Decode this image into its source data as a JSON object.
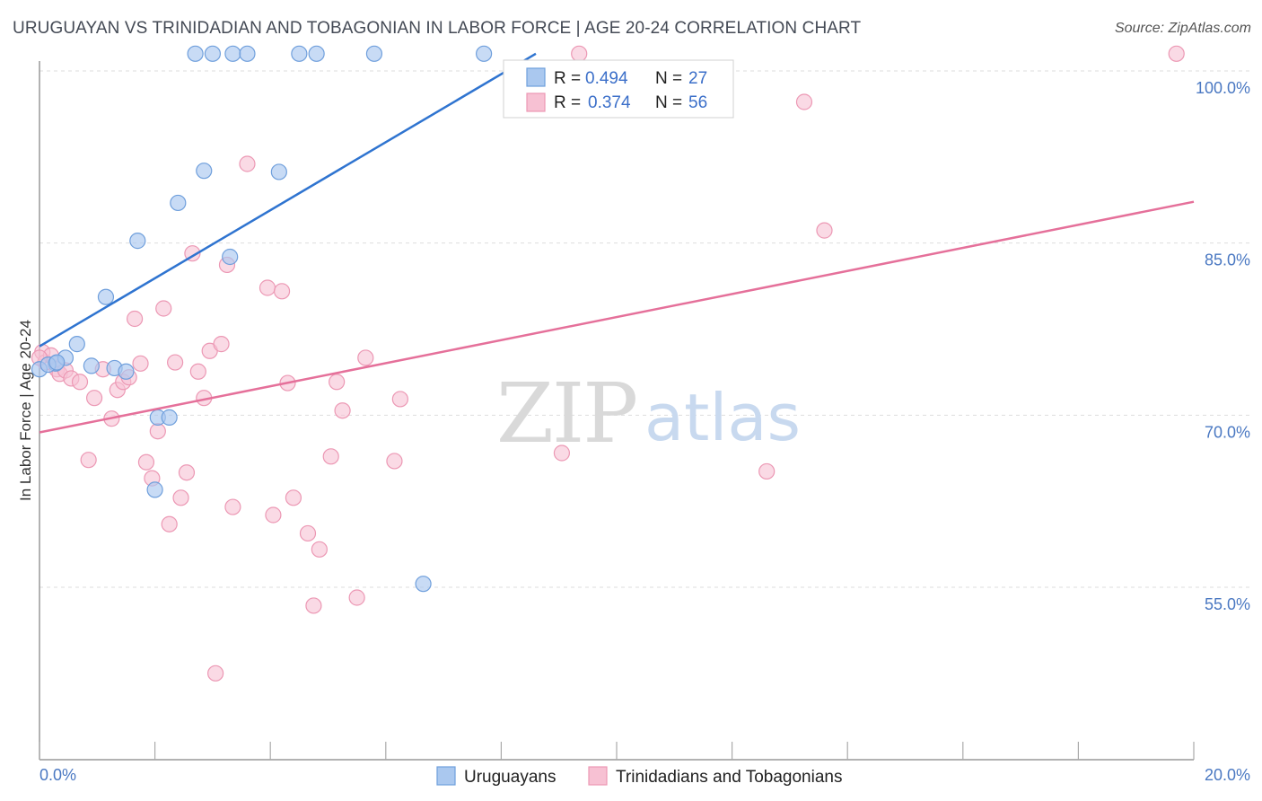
{
  "header": {
    "title": "URUGUAYAN VS TRINIDADIAN AND TOBAGONIAN IN LABOR FORCE | AGE 20-24 CORRELATION CHART",
    "source": "Source: ZipAtlas.com"
  },
  "watermark": {
    "zip": "ZIP",
    "atlas": "atlas"
  },
  "legend": {
    "r_label": "R =",
    "n_label": "N =",
    "rows": [
      {
        "r": "0.494",
        "n": "27"
      },
      {
        "r": "0.374",
        "n": "56"
      }
    ]
  },
  "bottom_legend": [
    "Uruguayans",
    "Trinidadians and Tobagonians"
  ],
  "colors": {
    "blue_fill": "#aac8ef",
    "blue_stroke": "#6f9fdc",
    "blue_line": "#2f74d0",
    "pink_fill": "#f7c1d3",
    "pink_stroke": "#ec98b4",
    "pink_line": "#e5709a",
    "tick_text": "#4a78c2",
    "grid": "#dddddd"
  },
  "chart_data": {
    "type": "scatter",
    "title": "URUGUAYAN VS TRINIDADIAN AND TOBAGONIAN IN LABOR FORCE | AGE 20-24 CORRELATION CHART",
    "xlabel": "",
    "ylabel": "In Labor Force | Age 20-24",
    "xlim": [
      0,
      20
    ],
    "ylim": [
      40,
      102
    ],
    "x_tick_labels": [
      "0.0%",
      "20.0%"
    ],
    "y_ticks": [
      55,
      70,
      85,
      100
    ],
    "y_tick_labels": [
      "55.0%",
      "70.0%",
      "85.0%",
      "100.0%"
    ],
    "grid": "horizontal dashed",
    "legend_position": "top-center",
    "series": [
      {
        "name": "Uruguayans",
        "r": 0.494,
        "n": 27,
        "trend": {
          "x": [
            0.0,
            8.6
          ],
          "y": [
            76.0,
            101.5
          ]
        },
        "points": [
          [
            0.0,
            74.0
          ],
          [
            0.28,
            74.5
          ],
          [
            0.45,
            75.0
          ],
          [
            0.65,
            76.2
          ],
          [
            0.9,
            74.3
          ],
          [
            1.15,
            80.3
          ],
          [
            1.3,
            74.1
          ],
          [
            1.5,
            73.8
          ],
          [
            1.7,
            85.2
          ],
          [
            2.0,
            63.5
          ],
          [
            2.05,
            69.8
          ],
          [
            2.25,
            69.8
          ],
          [
            2.4,
            88.5
          ],
          [
            2.7,
            101.5
          ],
          [
            2.85,
            91.3
          ],
          [
            3.0,
            101.5
          ],
          [
            3.3,
            83.8
          ],
          [
            3.35,
            101.5
          ],
          [
            3.6,
            101.5
          ],
          [
            4.15,
            91.2
          ],
          [
            4.5,
            101.5
          ],
          [
            4.8,
            101.5
          ],
          [
            5.8,
            101.5
          ],
          [
            6.65,
            55.3
          ],
          [
            7.7,
            101.5
          ],
          [
            0.15,
            74.4
          ],
          [
            0.3,
            74.6
          ]
        ]
      },
      {
        "name": "Trinidadians and Tobagonians",
        "r": 0.374,
        "n": 56,
        "trend": {
          "x": [
            0.0,
            20.0
          ],
          "y": [
            68.5,
            88.6
          ]
        },
        "points": [
          [
            0.05,
            75.5
          ],
          [
            0.1,
            74.6
          ],
          [
            0.2,
            75.2
          ],
          [
            0.3,
            74.0
          ],
          [
            0.35,
            73.6
          ],
          [
            0.45,
            73.9
          ],
          [
            0.55,
            73.2
          ],
          [
            0.7,
            72.9
          ],
          [
            0.85,
            66.1
          ],
          [
            0.95,
            71.5
          ],
          [
            1.1,
            74.0
          ],
          [
            1.25,
            69.7
          ],
          [
            1.35,
            72.2
          ],
          [
            1.45,
            72.9
          ],
          [
            1.55,
            73.3
          ],
          [
            1.65,
            78.4
          ],
          [
            1.75,
            74.5
          ],
          [
            1.85,
            65.9
          ],
          [
            1.95,
            64.5
          ],
          [
            2.05,
            68.6
          ],
          [
            2.15,
            79.3
          ],
          [
            2.25,
            60.5
          ],
          [
            2.35,
            74.6
          ],
          [
            2.45,
            62.8
          ],
          [
            2.55,
            65.0
          ],
          [
            2.65,
            84.1
          ],
          [
            2.75,
            73.8
          ],
          [
            2.85,
            71.5
          ],
          [
            2.95,
            75.6
          ],
          [
            3.05,
            47.5
          ],
          [
            3.15,
            76.2
          ],
          [
            3.25,
            83.1
          ],
          [
            3.35,
            62.0
          ],
          [
            3.6,
            91.9
          ],
          [
            3.95,
            81.1
          ],
          [
            4.05,
            61.3
          ],
          [
            4.2,
            80.8
          ],
          [
            4.3,
            72.8
          ],
          [
            4.4,
            62.8
          ],
          [
            4.65,
            59.7
          ],
          [
            4.75,
            53.4
          ],
          [
            4.85,
            58.3
          ],
          [
            5.05,
            66.4
          ],
          [
            5.15,
            72.9
          ],
          [
            5.25,
            70.4
          ],
          [
            5.5,
            54.1
          ],
          [
            5.65,
            75.0
          ],
          [
            6.15,
            66.0
          ],
          [
            6.25,
            71.4
          ],
          [
            9.05,
            66.7
          ],
          [
            9.35,
            101.5
          ],
          [
            12.6,
            65.1
          ],
          [
            13.25,
            97.3
          ],
          [
            13.6,
            86.1
          ],
          [
            19.7,
            101.5
          ],
          [
            0.0,
            75.0
          ]
        ]
      }
    ]
  }
}
